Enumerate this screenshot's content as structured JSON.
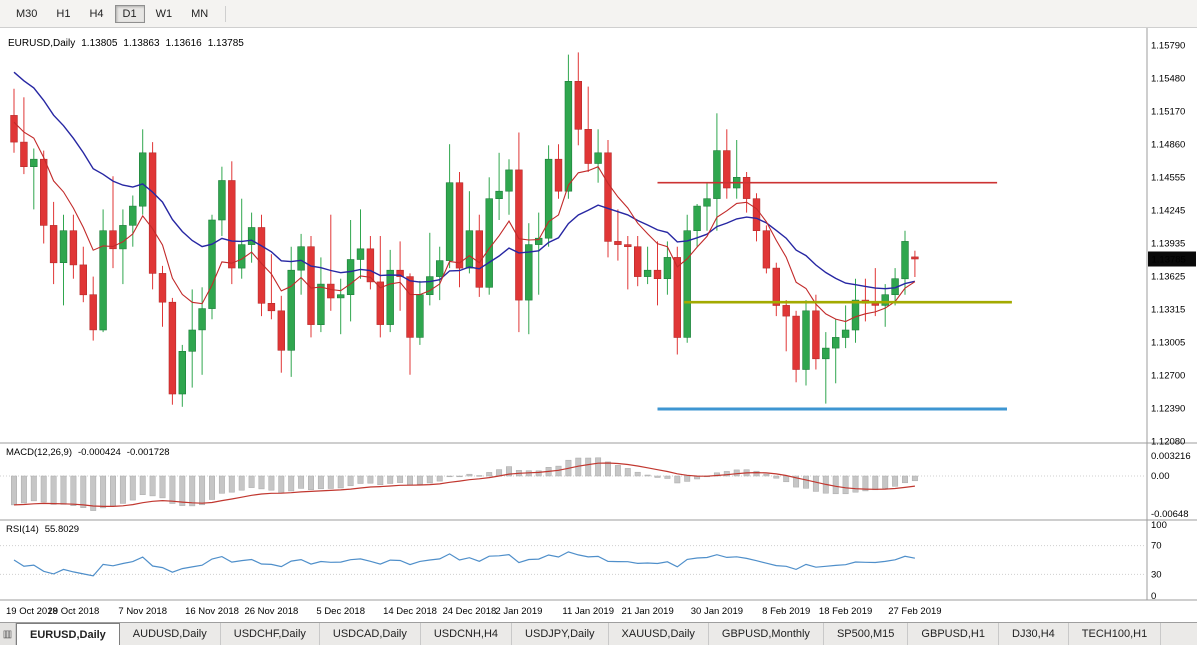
{
  "toolbar": {
    "timeframes": [
      {
        "label": "M30",
        "active": false
      },
      {
        "label": "H1",
        "active": false
      },
      {
        "label": "H4",
        "active": false
      },
      {
        "label": "D1",
        "active": true
      },
      {
        "label": "W1",
        "active": false
      },
      {
        "label": "MN",
        "active": false
      }
    ]
  },
  "chart": {
    "title": {
      "symbol": "EURUSD,Daily",
      "open": "1.13805",
      "high": "1.13863",
      "low": "1.13616",
      "close": "1.13785"
    },
    "price_axis": {
      "labels": [
        "1.15790",
        "1.15480",
        "1.15170",
        "1.14860",
        "1.14555",
        "1.14245",
        "1.13935",
        "1.13625",
        "1.13315",
        "1.13005",
        "1.12700",
        "1.12390",
        "1.12080"
      ],
      "current_price": "1.13785"
    },
    "time_axis": {
      "labels": [
        [
          "19 Oct 2018",
          0
        ],
        [
          "29 Oct 2018",
          6
        ],
        [
          "7 Nov 2018",
          13
        ],
        [
          "16 Nov 2018",
          20
        ],
        [
          "26 Nov 2018",
          26
        ],
        [
          "5 Dec 2018",
          33
        ],
        [
          "14 Dec 2018",
          40
        ],
        [
          "24 Dec 2018",
          46
        ],
        [
          "2 Jan 2019",
          51
        ],
        [
          "11 Jan 2019",
          58
        ],
        [
          "21 Jan 2019",
          64
        ],
        [
          "30 Jan 2019",
          71
        ],
        [
          "8 Feb 2019",
          78
        ],
        [
          "18 Feb 2019",
          84
        ],
        [
          "27 Feb 2019",
          91
        ]
      ]
    }
  },
  "chart_data": {
    "type": "candlestick",
    "symbol": "EURUSD",
    "timeframe": "Daily",
    "up_color": "#2fa64e",
    "down_color": "#e03636",
    "candles": [
      [
        1.1513,
        1.1538,
        1.1478,
        1.1488
      ],
      [
        1.1488,
        1.153,
        1.1458,
        1.1465
      ],
      [
        1.1465,
        1.1482,
        1.1425,
        1.1472
      ],
      [
        1.1472,
        1.148,
        1.1393,
        1.141
      ],
      [
        1.141,
        1.1432,
        1.1355,
        1.1375
      ],
      [
        1.1375,
        1.142,
        1.1335,
        1.1405
      ],
      [
        1.1405,
        1.142,
        1.136,
        1.1373
      ],
      [
        1.1373,
        1.139,
        1.1338,
        1.1345
      ],
      [
        1.1345,
        1.1362,
        1.1302,
        1.1312
      ],
      [
        1.1312,
        1.1425,
        1.131,
        1.1405
      ],
      [
        1.1405,
        1.1456,
        1.137,
        1.1388
      ],
      [
        1.1388,
        1.1425,
        1.1355,
        1.141
      ],
      [
        1.141,
        1.1438,
        1.139,
        1.1428
      ],
      [
        1.1428,
        1.15,
        1.142,
        1.1478
      ],
      [
        1.1478,
        1.1488,
        1.135,
        1.1365
      ],
      [
        1.1365,
        1.1372,
        1.1315,
        1.1338
      ],
      [
        1.1338,
        1.1342,
        1.1242,
        1.1252
      ],
      [
        1.1252,
        1.1298,
        1.124,
        1.1292
      ],
      [
        1.1292,
        1.135,
        1.1258,
        1.1312
      ],
      [
        1.1312,
        1.1352,
        1.127,
        1.1332
      ],
      [
        1.1332,
        1.142,
        1.1322,
        1.1415
      ],
      [
        1.1415,
        1.1465,
        1.14,
        1.1452
      ],
      [
        1.1452,
        1.147,
        1.1355,
        1.137
      ],
      [
        1.137,
        1.1435,
        1.136,
        1.1392
      ],
      [
        1.1392,
        1.1422,
        1.1375,
        1.1408
      ],
      [
        1.1408,
        1.142,
        1.1325,
        1.1337
      ],
      [
        1.1337,
        1.1383,
        1.1322,
        1.133
      ],
      [
        1.133,
        1.1344,
        1.1272,
        1.1293
      ],
      [
        1.1293,
        1.139,
        1.1268,
        1.1368
      ],
      [
        1.1368,
        1.1402,
        1.1345,
        1.139
      ],
      [
        1.139,
        1.14,
        1.1305,
        1.1317
      ],
      [
        1.1317,
        1.138,
        1.131,
        1.1355
      ],
      [
        1.1355,
        1.142,
        1.133,
        1.1342
      ],
      [
        1.1342,
        1.136,
        1.1308,
        1.1345
      ],
      [
        1.1345,
        1.1415,
        1.132,
        1.1378
      ],
      [
        1.1378,
        1.1425,
        1.136,
        1.1388
      ],
      [
        1.1388,
        1.14,
        1.135,
        1.1357
      ],
      [
        1.1357,
        1.14,
        1.1305,
        1.1317
      ],
      [
        1.1317,
        1.1387,
        1.131,
        1.1368
      ],
      [
        1.1368,
        1.1395,
        1.133,
        1.1362
      ],
      [
        1.1362,
        1.1365,
        1.127,
        1.1305
      ],
      [
        1.1305,
        1.1358,
        1.1298,
        1.1345
      ],
      [
        1.1345,
        1.1403,
        1.1335,
        1.1362
      ],
      [
        1.1362,
        1.139,
        1.134,
        1.1377
      ],
      [
        1.1377,
        1.1486,
        1.137,
        1.145
      ],
      [
        1.145,
        1.146,
        1.1352,
        1.137
      ],
      [
        1.137,
        1.1442,
        1.1365,
        1.1405
      ],
      [
        1.1405,
        1.142,
        1.1343,
        1.1352
      ],
      [
        1.1352,
        1.1455,
        1.1345,
        1.1435
      ],
      [
        1.1435,
        1.1478,
        1.1415,
        1.1442
      ],
      [
        1.1442,
        1.1472,
        1.142,
        1.1462
      ],
      [
        1.1462,
        1.1497,
        1.131,
        1.134
      ],
      [
        1.134,
        1.1412,
        1.1308,
        1.1392
      ],
      [
        1.1392,
        1.1422,
        1.1345,
        1.1398
      ],
      [
        1.1398,
        1.1485,
        1.139,
        1.1472
      ],
      [
        1.1472,
        1.1486,
        1.1435,
        1.1442
      ],
      [
        1.1442,
        1.157,
        1.1435,
        1.1545
      ],
      [
        1.1545,
        1.1572,
        1.1485,
        1.15
      ],
      [
        1.15,
        1.154,
        1.146,
        1.1468
      ],
      [
        1.1468,
        1.15,
        1.145,
        1.1478
      ],
      [
        1.1478,
        1.149,
        1.138,
        1.1395
      ],
      [
        1.1395,
        1.1425,
        1.1377,
        1.1392
      ],
      [
        1.1392,
        1.14,
        1.135,
        1.139
      ],
      [
        1.139,
        1.14,
        1.1353,
        1.1362
      ],
      [
        1.1362,
        1.139,
        1.1355,
        1.1368
      ],
      [
        1.1368,
        1.1395,
        1.1335,
        1.136
      ],
      [
        1.136,
        1.1395,
        1.1345,
        1.138
      ],
      [
        1.138,
        1.139,
        1.1289,
        1.1305
      ],
      [
        1.1305,
        1.142,
        1.13,
        1.1405
      ],
      [
        1.1405,
        1.143,
        1.139,
        1.1428
      ],
      [
        1.1428,
        1.145,
        1.1405,
        1.1435
      ],
      [
        1.1435,
        1.1515,
        1.1405,
        1.148
      ],
      [
        1.148,
        1.15,
        1.1435,
        1.1445
      ],
      [
        1.1445,
        1.149,
        1.1435,
        1.1455
      ],
      [
        1.1455,
        1.146,
        1.1422,
        1.1435
      ],
      [
        1.1435,
        1.144,
        1.1395,
        1.1405
      ],
      [
        1.1405,
        1.141,
        1.1365,
        1.137
      ],
      [
        1.137,
        1.1375,
        1.1325,
        1.1335
      ],
      [
        1.1335,
        1.134,
        1.1292,
        1.1325
      ],
      [
        1.1325,
        1.133,
        1.1263,
        1.1275
      ],
      [
        1.1275,
        1.134,
        1.126,
        1.133
      ],
      [
        1.133,
        1.1345,
        1.1275,
        1.1285
      ],
      [
        1.1285,
        1.131,
        1.1243,
        1.1295
      ],
      [
        1.1295,
        1.1322,
        1.1262,
        1.1305
      ],
      [
        1.1305,
        1.1335,
        1.1295,
        1.1312
      ],
      [
        1.1312,
        1.136,
        1.13,
        1.134
      ],
      [
        1.134,
        1.136,
        1.132,
        1.1337
      ],
      [
        1.1337,
        1.137,
        1.1325,
        1.1335
      ],
      [
        1.1335,
        1.1355,
        1.1315,
        1.1345
      ],
      [
        1.1345,
        1.137,
        1.1335,
        1.136
      ],
      [
        1.136,
        1.1405,
        1.1345,
        1.1395
      ],
      [
        1.13805,
        1.13863,
        1.13616,
        1.13785
      ]
    ],
    "overlays": {
      "ma_blue": {
        "period": 21,
        "seed": 1.156,
        "color": "#2727a3"
      },
      "ma_red": {
        "period": 8,
        "seed": 1.1512,
        "color": "#c22a2a"
      }
    },
    "hlines": [
      {
        "price": 1.145,
        "from_idx": 65,
        "to_idx": 99.3,
        "color": "#cc3333",
        "width": 1.6
      },
      {
        "price": 1.1338,
        "from_idx": 67.7,
        "to_idx": 100.8,
        "color": "#a3aa00",
        "width": 2.6
      },
      {
        "price": 1.1238,
        "from_idx": 65,
        "to_idx": 100.3,
        "color": "#3e96d2",
        "width": 3
      }
    ],
    "indicators": {
      "macd": {
        "name": "MACD(12,26,9)",
        "values": [
          "-0.000424",
          "-0.001728"
        ],
        "fast": 12,
        "slow": 26,
        "signal": 9,
        "seed_fast": 1.1468,
        "seed_slow": 1.152,
        "axis": [
          "0.003216",
          "0.00",
          "-0.00648"
        ],
        "hist_color": "#c6c6c6",
        "signal_color": "#c1372f"
      },
      "rsi": {
        "name": "RSI(14)",
        "value": "55.8029",
        "period": 14,
        "axis": [
          "100",
          "70",
          "30",
          "0"
        ],
        "levels": [
          70,
          30
        ],
        "color": "#4f8fca"
      }
    }
  },
  "tabs": {
    "items": [
      {
        "label": "EURUSD,Daily",
        "active": true
      },
      {
        "label": "AUDUSD,Daily",
        "active": false
      },
      {
        "label": "USDCHF,Daily",
        "active": false
      },
      {
        "label": "USDCAD,Daily",
        "active": false
      },
      {
        "label": "USDCNH,H4",
        "active": false
      },
      {
        "label": "USDJPY,Daily",
        "active": false
      },
      {
        "label": "XAUUSD,Daily",
        "active": false
      },
      {
        "label": "GBPUSD,Monthly",
        "active": false
      },
      {
        "label": "SP500,M15",
        "active": false
      },
      {
        "label": "GBPUSD,H1",
        "active": false
      },
      {
        "label": "DJ30,H4",
        "active": false
      },
      {
        "label": "TECH100,H1",
        "active": false
      }
    ]
  }
}
